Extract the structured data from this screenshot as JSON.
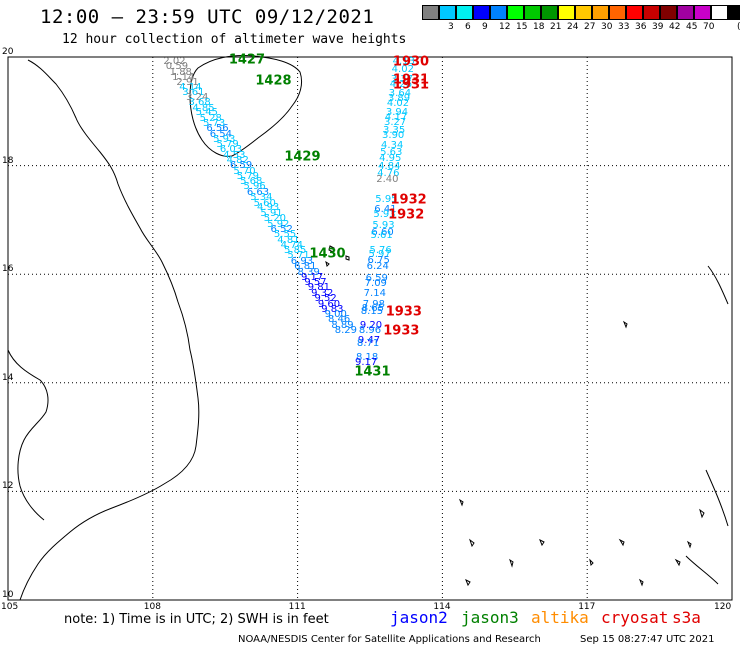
{
  "header": {
    "title": "12:00 – 23:59 UTC 09/12/2021",
    "subtitle": "12 hour collection of altimeter wave heights"
  },
  "legend": {
    "colors": [
      "#808080",
      "#00c8ff",
      "#00f0f0",
      "#0000ff",
      "#0082ff",
      "#00ff00",
      "#00c800",
      "#009600",
      "#ffff00",
      "#ffc800",
      "#ffa000",
      "#ff6400",
      "#ff0000",
      "#c80000",
      "#800000",
      "#a000a0",
      "#c800c8",
      "#ffffff",
      "#000000"
    ],
    "labels": [
      "3",
      "6",
      "9",
      "12",
      "15",
      "18",
      "21",
      "24",
      "27",
      "30",
      "33",
      "36",
      "39",
      "42",
      "45",
      "70"
    ],
    "unit": "(ft)"
  },
  "axes": {
    "x_ticks": [
      "105",
      "108",
      "111",
      "114",
      "117",
      "120"
    ],
    "y_ticks": [
      "20",
      "18",
      "16",
      "14",
      "12",
      "10"
    ],
    "x_range": [
      105,
      120
    ],
    "y_range": [
      10,
      20
    ]
  },
  "observations": [
    {
      "v": "2.02",
      "lon": 108.45,
      "lat": 19.9,
      "c": "#808080"
    },
    {
      "v": "0.59",
      "lon": 108.5,
      "lat": 19.81,
      "c": "#808080"
    },
    {
      "v": "1.88",
      "lon": 108.58,
      "lat": 19.71,
      "c": "#808080"
    },
    {
      "v": "1.14",
      "lon": 108.63,
      "lat": 19.62,
      "c": "#808080"
    },
    {
      "v": "2.91",
      "lon": 108.72,
      "lat": 19.53,
      "c": "#808080"
    },
    {
      "v": "4.14",
      "lon": 108.78,
      "lat": 19.43,
      "c": "#00c8ff"
    },
    {
      "v": "3.61",
      "lon": 108.84,
      "lat": 19.34,
      "c": "#00c8ff"
    },
    {
      "v": "3.24",
      "lon": 108.92,
      "lat": 19.24,
      "c": "#808080"
    },
    {
      "v": "3.68",
      "lon": 108.97,
      "lat": 19.15,
      "c": "#00c8ff"
    },
    {
      "v": "4.85",
      "lon": 109.05,
      "lat": 19.05,
      "c": "#00c8ff"
    },
    {
      "v": "5.45",
      "lon": 109.12,
      "lat": 18.96,
      "c": "#00c8ff"
    },
    {
      "v": "5.28",
      "lon": 109.2,
      "lat": 18.86,
      "c": "#00c8ff"
    },
    {
      "v": "5.73",
      "lon": 109.27,
      "lat": 18.76,
      "c": "#00c8ff"
    },
    {
      "v": "6.56",
      "lon": 109.34,
      "lat": 18.67,
      "c": "#0082ff"
    },
    {
      "v": "6.54",
      "lon": 109.41,
      "lat": 18.57,
      "c": "#0082ff"
    },
    {
      "v": "5.93",
      "lon": 109.48,
      "lat": 18.47,
      "c": "#00c8ff"
    },
    {
      "v": "5.79",
      "lon": 109.55,
      "lat": 18.38,
      "c": "#00c8ff"
    },
    {
      "v": "6.03",
      "lon": 109.62,
      "lat": 18.28,
      "c": "#00c8ff"
    },
    {
      "v": "4.53",
      "lon": 109.69,
      "lat": 18.18,
      "c": "#00c8ff"
    },
    {
      "v": "4.82",
      "lon": 109.76,
      "lat": 18.09,
      "c": "#00c8ff"
    },
    {
      "v": "6.59",
      "lon": 109.83,
      "lat": 17.99,
      "c": "#0082ff"
    },
    {
      "v": "5.70",
      "lon": 109.9,
      "lat": 17.89,
      "c": "#00c8ff"
    },
    {
      "v": "5.79",
      "lon": 109.97,
      "lat": 17.79,
      "c": "#00c8ff"
    },
    {
      "v": "5.68",
      "lon": 110.04,
      "lat": 17.7,
      "c": "#00c8ff"
    },
    {
      "v": "5.96",
      "lon": 110.11,
      "lat": 17.6,
      "c": "#00c8ff"
    },
    {
      "v": "6.63",
      "lon": 110.18,
      "lat": 17.5,
      "c": "#0082ff"
    },
    {
      "v": "5.34",
      "lon": 110.25,
      "lat": 17.4,
      "c": "#00c8ff"
    },
    {
      "v": "5.60",
      "lon": 110.32,
      "lat": 17.3,
      "c": "#00c8ff"
    },
    {
      "v": "4.93",
      "lon": 110.39,
      "lat": 17.21,
      "c": "#00c8ff"
    },
    {
      "v": "5.91",
      "lon": 110.46,
      "lat": 17.11,
      "c": "#00c8ff"
    },
    {
      "v": "5.20",
      "lon": 110.53,
      "lat": 17.01,
      "c": "#00c8ff"
    },
    {
      "v": "5.92",
      "lon": 110.6,
      "lat": 16.91,
      "c": "#00c8ff"
    },
    {
      "v": "6.52",
      "lon": 110.67,
      "lat": 16.82,
      "c": "#0082ff"
    },
    {
      "v": "5.55",
      "lon": 110.74,
      "lat": 16.72,
      "c": "#00c8ff"
    },
    {
      "v": "4.81",
      "lon": 110.81,
      "lat": 16.62,
      "c": "#00c8ff"
    },
    {
      "v": "4.74",
      "lon": 110.88,
      "lat": 16.52,
      "c": "#00c8ff"
    },
    {
      "v": "5.85",
      "lon": 110.95,
      "lat": 16.42,
      "c": "#00c8ff"
    },
    {
      "v": "5.71",
      "lon": 111.02,
      "lat": 16.33,
      "c": "#00c8ff"
    },
    {
      "v": "6.93",
      "lon": 111.09,
      "lat": 16.23,
      "c": "#0082ff"
    },
    {
      "v": "6.81",
      "lon": 111.16,
      "lat": 16.13,
      "c": "#0082ff"
    },
    {
      "v": "8.39",
      "lon": 111.23,
      "lat": 16.03,
      "c": "#0082ff"
    },
    {
      "v": "9.17",
      "lon": 111.3,
      "lat": 15.93,
      "c": "#0000ff"
    },
    {
      "v": "9.57",
      "lon": 111.37,
      "lat": 15.84,
      "c": "#0000ff"
    },
    {
      "v": "9.81",
      "lon": 111.44,
      "lat": 15.74,
      "c": "#0000ff"
    },
    {
      "v": "9.32",
      "lon": 111.51,
      "lat": 15.64,
      "c": "#0000ff"
    },
    {
      "v": "9.52",
      "lon": 111.58,
      "lat": 15.54,
      "c": "#0000ff"
    },
    {
      "v": "9.60",
      "lon": 111.65,
      "lat": 15.44,
      "c": "#0000ff"
    },
    {
      "v": "9.83",
      "lon": 111.72,
      "lat": 15.34,
      "c": "#0000ff"
    },
    {
      "v": "9.00",
      "lon": 111.79,
      "lat": 15.24,
      "c": "#0082ff"
    },
    {
      "v": "8.46",
      "lon": 111.86,
      "lat": 15.15,
      "c": "#0082ff"
    },
    {
      "v": "8.89",
      "lon": 111.93,
      "lat": 15.05,
      "c": "#0082ff"
    },
    {
      "v": "8.29",
      "lon": 112.0,
      "lat": 14.95,
      "c": "#0082ff"
    },
    {
      "v": "4.13",
      "lon": 113.2,
      "lat": 19.9,
      "c": "#00c8ff"
    },
    {
      "v": "4.02",
      "lon": 113.18,
      "lat": 19.76,
      "c": "#00c8ff"
    },
    {
      "v": "3.37",
      "lon": 113.16,
      "lat": 19.58,
      "c": "#00c8ff"
    },
    {
      "v": "4.26",
      "lon": 113.14,
      "lat": 19.49,
      "c": "#00c8ff"
    },
    {
      "v": "3.64",
      "lon": 113.12,
      "lat": 19.31,
      "c": "#00c8ff"
    },
    {
      "v": "3.89",
      "lon": 113.1,
      "lat": 19.22,
      "c": "#00c8ff"
    },
    {
      "v": "4.02",
      "lon": 113.08,
      "lat": 19.13,
      "c": "#00c8ff"
    },
    {
      "v": "3.94",
      "lon": 113.06,
      "lat": 18.96,
      "c": "#00c8ff"
    },
    {
      "v": "4.17",
      "lon": 113.04,
      "lat": 18.87,
      "c": "#00c8ff"
    },
    {
      "v": "3.27",
      "lon": 113.02,
      "lat": 18.78,
      "c": "#00c8ff"
    },
    {
      "v": "3.35",
      "lon": 113.0,
      "lat": 18.64,
      "c": "#00c8ff"
    },
    {
      "v": "3.90",
      "lon": 112.98,
      "lat": 18.55,
      "c": "#00c8ff"
    },
    {
      "v": "4.34",
      "lon": 112.96,
      "lat": 18.37,
      "c": "#00c8ff"
    },
    {
      "v": "5.63",
      "lon": 112.94,
      "lat": 18.23,
      "c": "#00c8ff"
    },
    {
      "v": "4.95",
      "lon": 112.92,
      "lat": 18.13,
      "c": "#00c8ff"
    },
    {
      "v": "4.84",
      "lon": 112.9,
      "lat": 17.98,
      "c": "#00c8ff"
    },
    {
      "v": "4.76",
      "lon": 112.88,
      "lat": 17.84,
      "c": "#00c8ff"
    },
    {
      "v": "2.40",
      "lon": 112.86,
      "lat": 17.73,
      "c": "#808080"
    },
    {
      "v": "5.95",
      "lon": 112.84,
      "lat": 17.37,
      "c": "#00c8ff"
    },
    {
      "v": "6.41",
      "lon": 112.82,
      "lat": 17.19,
      "c": "#0082ff"
    },
    {
      "v": "5.93",
      "lon": 112.8,
      "lat": 17.09,
      "c": "#00c8ff"
    },
    {
      "v": "5.93",
      "lon": 112.78,
      "lat": 16.89,
      "c": "#00c8ff"
    },
    {
      "v": "6.60",
      "lon": 112.76,
      "lat": 16.76,
      "c": "#0082ff"
    },
    {
      "v": "5.61",
      "lon": 112.74,
      "lat": 16.7,
      "c": "#00c8ff"
    },
    {
      "v": "5.76",
      "lon": 112.72,
      "lat": 16.42,
      "c": "#00c8ff"
    },
    {
      "v": "5.97",
      "lon": 112.7,
      "lat": 16.36,
      "c": "#00c8ff"
    },
    {
      "v": "6.75",
      "lon": 112.68,
      "lat": 16.25,
      "c": "#0082ff"
    },
    {
      "v": "6.24",
      "lon": 112.66,
      "lat": 16.13,
      "c": "#0082ff"
    },
    {
      "v": "6.59",
      "lon": 112.64,
      "lat": 15.91,
      "c": "#0082ff"
    },
    {
      "v": "7.09",
      "lon": 112.62,
      "lat": 15.82,
      "c": "#0082ff"
    },
    {
      "v": "7.14",
      "lon": 112.6,
      "lat": 15.63,
      "c": "#0082ff"
    },
    {
      "v": "7.98",
      "lon": 112.58,
      "lat": 15.44,
      "c": "#0082ff"
    },
    {
      "v": "8.65",
      "lon": 112.56,
      "lat": 15.35,
      "c": "#0082ff"
    },
    {
      "v": "8.15",
      "lon": 112.54,
      "lat": 15.31,
      "c": "#0082ff"
    },
    {
      "v": "9.20",
      "lon": 112.52,
      "lat": 15.05,
      "c": "#0000ff"
    },
    {
      "v": "8.96",
      "lon": 112.5,
      "lat": 14.96,
      "c": "#0082ff"
    },
    {
      "v": "9.47",
      "lon": 112.48,
      "lat": 14.77,
      "c": "#0000ff"
    },
    {
      "v": "8.71",
      "lon": 112.46,
      "lat": 14.72,
      "c": "#0082ff"
    },
    {
      "v": "8.18",
      "lon": 112.44,
      "lat": 14.46,
      "c": "#0082ff"
    },
    {
      "v": "9.17",
      "lon": 112.42,
      "lat": 14.37,
      "c": "#0000ff"
    }
  ],
  "passes": [
    {
      "label": "1427",
      "lon": 109.95,
      "lat": 19.95,
      "c": "#008000"
    },
    {
      "label": "1428",
      "lon": 110.5,
      "lat": 19.55,
      "c": "#008000"
    },
    {
      "label": "1429",
      "lon": 111.1,
      "lat": 18.15,
      "c": "#008000"
    },
    {
      "label": "1430",
      "lon": 111.62,
      "lat": 16.37,
      "c": "#008000"
    },
    {
      "label": "1431",
      "lon": 112.55,
      "lat": 14.2,
      "c": "#008000"
    },
    {
      "label": "1930",
      "lon": 113.35,
      "lat": 19.9,
      "c": "#e00000"
    },
    {
      "label": "1931",
      "lon": 113.35,
      "lat": 19.58,
      "c": "#e00000"
    },
    {
      "label": "1931",
      "lon": 113.35,
      "lat": 19.49,
      "c": "#e00000"
    },
    {
      "label": "1932",
      "lon": 113.3,
      "lat": 17.37,
      "c": "#e00000"
    },
    {
      "label": "1932",
      "lon": 113.25,
      "lat": 17.09,
      "c": "#e00000"
    },
    {
      "label": "1933",
      "lon": 113.2,
      "lat": 15.31,
      "c": "#e00000"
    },
    {
      "label": "1933",
      "lon": 113.15,
      "lat": 14.96,
      "c": "#e00000"
    }
  ],
  "footer": {
    "note": "note:  1) Time is in UTC;  2) SWH is in feet",
    "satellites": [
      {
        "name": "jason2",
        "color": "#0000ff"
      },
      {
        "name": "jason3",
        "color": "#008000"
      },
      {
        "name": "altika",
        "color": "#ff8c00"
      },
      {
        "name": "cryosat",
        "color": "#e00000"
      },
      {
        "name": "s3a",
        "color": "#e00000"
      }
    ],
    "credit": "NOAA/NESDIS Center for Satellite Applications and Research",
    "timestamp": "Sep 15 08:27:47 UTC 2021"
  }
}
